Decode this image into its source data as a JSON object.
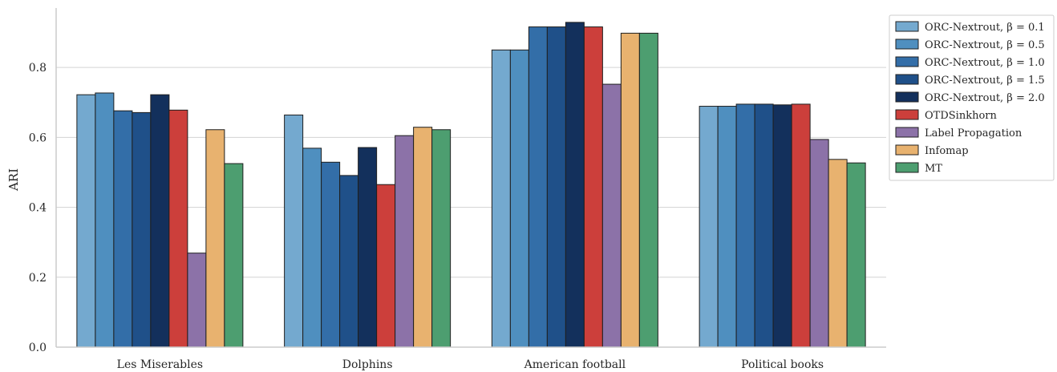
{
  "chart_data": {
    "type": "bar",
    "title": "",
    "xlabel": "",
    "ylabel": "ARI",
    "ylim": [
      0,
      0.97
    ],
    "yticks": [
      "0.0",
      "0.2",
      "0.4",
      "0.6",
      "0.8"
    ],
    "ytick_values": [
      0,
      0.2,
      0.4,
      0.6,
      0.8
    ],
    "grid": "horizontal",
    "legend_position": "top-right",
    "categories": [
      "Les Miserables",
      "Dolphins",
      "American football",
      "Political books"
    ],
    "series": [
      {
        "name": "ORC-Nextrout, β = 0.1",
        "color": "#74a9cf",
        "values": [
          0.722,
          0.664,
          0.85,
          0.689
        ]
      },
      {
        "name": "ORC-Nextrout, β = 0.5",
        "color": "#4f8fbf",
        "values": [
          0.727,
          0.569,
          0.85,
          0.689
        ]
      },
      {
        "name": "ORC-Nextrout, β = 1.0",
        "color": "#336ea8",
        "values": [
          0.676,
          0.529,
          0.916,
          0.695
        ]
      },
      {
        "name": "ORC-Nextrout, β = 1.5",
        "color": "#1f5089",
        "values": [
          0.671,
          0.491,
          0.916,
          0.695
        ]
      },
      {
        "name": "ORC-Nextrout, β = 2.0",
        "color": "#13305c",
        "values": [
          0.722,
          0.571,
          0.929,
          0.693
        ]
      },
      {
        "name": "OTDSinkhorn",
        "color": "#cc3f3b",
        "values": [
          0.678,
          0.465,
          0.916,
          0.695
        ]
      },
      {
        "name": "Label Propagation",
        "color": "#8c72a8",
        "values": [
          0.269,
          0.605,
          0.752,
          0.594
        ]
      },
      {
        "name": "Infomap",
        "color": "#e8b26f",
        "values": [
          0.622,
          0.629,
          0.898,
          0.537
        ]
      },
      {
        "name": "MT",
        "color": "#4d9e70",
        "values": [
          0.525,
          0.622,
          0.898,
          0.527
        ]
      }
    ]
  }
}
